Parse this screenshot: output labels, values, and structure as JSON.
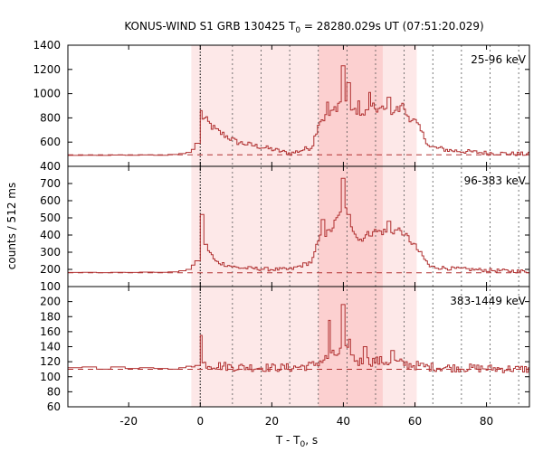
{
  "chart_data": {
    "type": "line",
    "title_prefix": "KONUS-WIND S1 GRB 130425 T",
    "title_sub": "0",
    "title_rest": " = 28280.029s UT (07:51:20.029)",
    "xlabel_main": "T - T",
    "xlabel_sub": "0",
    "xlabel_tail": ", s",
    "ylabel": "counts / 512 ms",
    "xlim": [
      -37,
      92
    ],
    "x_ticks": [
      -20,
      0,
      20,
      40,
      60,
      80
    ],
    "x_tick_labels": [
      "-20",
      "0",
      "20",
      "40",
      "60",
      "80"
    ],
    "shaded_intervals": [
      {
        "from": -2.5,
        "to": 60.5,
        "shade": "light"
      },
      {
        "from": 33,
        "to": 51,
        "shade": "dark"
      }
    ],
    "vertical_markers": [
      0,
      9,
      17,
      25,
      33,
      41,
      49,
      57,
      65,
      73,
      81,
      89
    ],
    "colors": {
      "line": "#b03030",
      "background_dashed": "#b03030",
      "shade_light": "#fde8e8",
      "shade_dark": "#fcd0d0",
      "marker": "#555555"
    },
    "panels": [
      {
        "label": "25-96 keV",
        "ylim": [
          400,
          1400
        ],
        "y_ticks": [
          400,
          600,
          800,
          1000,
          1200,
          1400
        ],
        "y_tick_labels": [
          "400",
          "600",
          "800",
          "1000",
          "1200",
          "1400"
        ],
        "background": 495,
        "coarse": [
          [
            -37,
            490
          ],
          [
            -33,
            492
          ],
          [
            -29,
            490
          ],
          [
            -25,
            493
          ],
          [
            -21,
            492
          ],
          [
            -17,
            494
          ],
          [
            -13,
            492
          ],
          [
            -9,
            498
          ],
          [
            -6,
            505
          ],
          [
            -4,
            515
          ],
          [
            -2.5,
            540
          ],
          [
            -1.5,
            590
          ]
        ],
        "profile": [
          [
            0,
            820
          ],
          [
            4,
            700
          ],
          [
            10,
            600
          ],
          [
            20,
            540
          ],
          [
            25,
            505
          ],
          [
            31,
            560
          ],
          [
            33,
            780
          ],
          [
            36,
            820
          ],
          [
            40,
            980
          ],
          [
            44,
            800
          ],
          [
            48,
            880
          ],
          [
            52,
            860
          ],
          [
            56,
            870
          ],
          [
            60,
            760
          ],
          [
            64,
            560
          ],
          [
            70,
            530
          ],
          [
            80,
            510
          ],
          [
            92,
            500
          ]
        ],
        "spikes": [
          [
            0,
            860
          ],
          [
            39.6,
            1230
          ],
          [
            41.2,
            1090
          ],
          [
            47.2,
            1010
          ],
          [
            52.4,
            970
          ],
          [
            44.1,
            940
          ],
          [
            35.4,
            930
          ],
          [
            56.3,
            920
          ]
        ],
        "noise_level": 28
      },
      {
        "label": "96-383 keV",
        "ylim": [
          100,
          800
        ],
        "y_ticks": [
          100,
          200,
          300,
          400,
          500,
          600,
          700
        ],
        "y_tick_labels": [
          "100",
          "200",
          "300",
          "400",
          "500",
          "600",
          "700"
        ],
        "background": 180,
        "coarse": [
          [
            -37,
            182
          ],
          [
            -33,
            183
          ],
          [
            -29,
            181
          ],
          [
            -25,
            183
          ],
          [
            -21,
            182
          ],
          [
            -17,
            184
          ],
          [
            -13,
            183
          ],
          [
            -9,
            186
          ],
          [
            -6,
            192
          ],
          [
            -4,
            200
          ],
          [
            -2.5,
            225
          ],
          [
            -1.5,
            250
          ]
        ],
        "profile": [
          [
            0,
            390
          ],
          [
            4,
            245
          ],
          [
            10,
            210
          ],
          [
            20,
            200
          ],
          [
            25,
            200
          ],
          [
            31,
            245
          ],
          [
            33,
            380
          ],
          [
            36,
            420
          ],
          [
            40,
            560
          ],
          [
            44,
            370
          ],
          [
            48,
            420
          ],
          [
            52,
            420
          ],
          [
            56,
            430
          ],
          [
            60,
            330
          ],
          [
            64,
            215
          ],
          [
            70,
            205
          ],
          [
            80,
            195
          ],
          [
            92,
            188
          ]
        ],
        "spikes": [
          [
            0.2,
            520
          ],
          [
            39.7,
            730
          ],
          [
            41.3,
            520
          ],
          [
            48.1,
            420
          ],
          [
            52.5,
            480
          ],
          [
            34.1,
            490
          ],
          [
            56.7,
            400
          ]
        ],
        "noise_level": 16
      },
      {
        "label": "383-1449 keV",
        "ylim": [
          60,
          220
        ],
        "y_ticks": [
          60,
          80,
          100,
          120,
          140,
          160,
          180,
          200
        ],
        "y_tick_labels": [
          "60",
          "80",
          "100",
          "120",
          "140",
          "160",
          "180",
          "200"
        ],
        "background": 110,
        "coarse": [
          [
            -37,
            112
          ],
          [
            -33,
            113
          ],
          [
            -29,
            110
          ],
          [
            -25,
            113
          ],
          [
            -21,
            111
          ],
          [
            -17,
            112
          ],
          [
            -13,
            111
          ],
          [
            -9,
            110
          ],
          [
            -6,
            112
          ],
          [
            -4,
            114
          ],
          [
            -2.5,
            113
          ],
          [
            -1.5,
            115
          ]
        ],
        "profile": [
          [
            0,
            118
          ],
          [
            4,
            115
          ],
          [
            10,
            113
          ],
          [
            20,
            112
          ],
          [
            25,
            112
          ],
          [
            31,
            115
          ],
          [
            33,
            120
          ],
          [
            36,
            126
          ],
          [
            40,
            135
          ],
          [
            44,
            120
          ],
          [
            48,
            121
          ],
          [
            52,
            120
          ],
          [
            56,
            118
          ],
          [
            60,
            115
          ],
          [
            64,
            113
          ],
          [
            70,
            112
          ],
          [
            80,
            111
          ],
          [
            92,
            110
          ]
        ],
        "spikes": [
          [
            0.1,
            155
          ],
          [
            35.9,
            175
          ],
          [
            39.8,
            196
          ],
          [
            41.4,
            150
          ],
          [
            45.9,
            140
          ],
          [
            53.4,
            135
          ]
        ],
        "noise_level": 9
      }
    ]
  }
}
